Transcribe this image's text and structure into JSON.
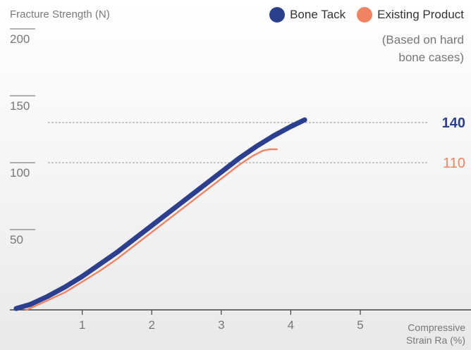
{
  "chart_data": {
    "type": "line",
    "ylabel": "Fracture Strength (N)",
    "xlabel_lines": [
      "Compressive",
      "Strain Ra (%)"
    ],
    "note_lines": [
      "(Based on hard",
      "bone cases)"
    ],
    "xlim": [
      0,
      5.5
    ],
    "ylim": [
      0,
      200
    ],
    "x_ticks": [
      1,
      2,
      3,
      4,
      5
    ],
    "y_ticks": [
      50,
      100,
      150,
      200
    ],
    "series": [
      {
        "name": "Bone Tack",
        "color": "#2b3f8e",
        "x": [
          0.05,
          0.25,
          0.5,
          0.75,
          1.0,
          1.25,
          1.5,
          1.75,
          2.0,
          2.25,
          2.5,
          2.75,
          3.0,
          3.25,
          3.5,
          3.75,
          4.0,
          4.2
        ],
        "y": [
          1,
          4,
          10,
          17,
          25,
          34,
          43,
          53,
          63,
          73,
          83,
          93,
          103,
          113,
          122,
          130,
          137,
          142
        ]
      },
      {
        "name": "Existing Product",
        "color": "#f08362",
        "x": [
          0.2,
          0.5,
          0.75,
          1.0,
          1.25,
          1.5,
          1.75,
          2.0,
          2.25,
          2.5,
          2.75,
          3.0,
          3.25,
          3.45,
          3.6,
          3.7,
          3.8
        ],
        "y": [
          0,
          7,
          13,
          21,
          29,
          38,
          48,
          58,
          68,
          78,
          88,
          98,
          108,
          115,
          119,
          120,
          120
        ]
      }
    ],
    "reference_lines": [
      {
        "value": 140,
        "label": "140",
        "color": "#2b3f8e"
      },
      {
        "value": 110,
        "label": "110",
        "color": "#f08362"
      }
    ]
  }
}
